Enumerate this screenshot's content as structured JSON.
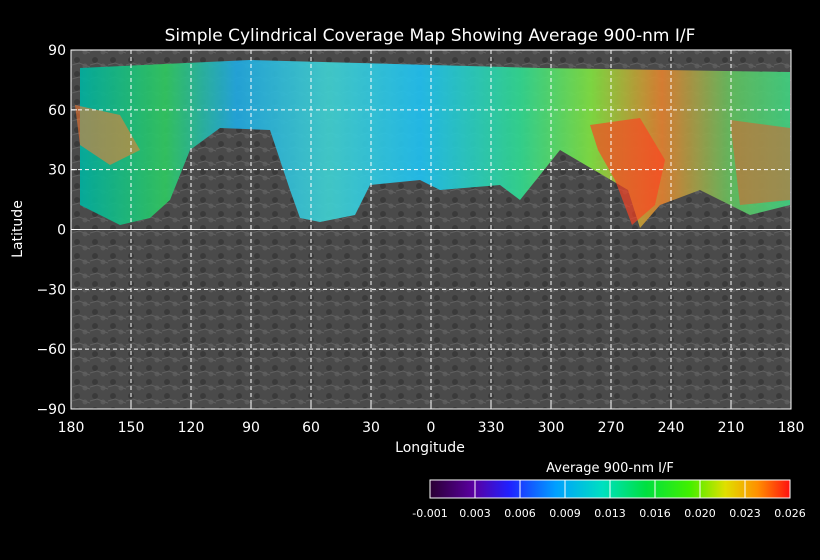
{
  "chart_data": {
    "type": "heatmap",
    "title": "Simple Cylindrical Coverage Map Showing Average 900-nm I/F",
    "xlabel": "Longitude",
    "ylabel": "Latitude",
    "x_ticks": [
      "180",
      "150",
      "120",
      "90",
      "60",
      "30",
      "0",
      "330",
      "300",
      "270",
      "240",
      "210",
      "180"
    ],
    "y_ticks": [
      "90",
      "60",
      "30",
      "0",
      "-30",
      "-60",
      "-90"
    ],
    "xlim": [
      180,
      -180
    ],
    "ylim": [
      -90,
      90
    ],
    "grid": true,
    "colorbar": {
      "label": "Average 900-nm I/F",
      "min": -0.001,
      "max": 0.026,
      "tick_labels": [
        "-0.001",
        "0.003",
        "0.006",
        "0.009",
        "0.013",
        "0.016",
        "0.020",
        "0.023",
        "0.026"
      ],
      "colors": [
        "#2a0033",
        "#5a00a0",
        "#2020ff",
        "#00a0ff",
        "#00e0c0",
        "#00e040",
        "#40f000",
        "#e0e000",
        "#ff9000",
        "#ff1010"
      ]
    },
    "coverage_band": {
      "lat_range": [
        0,
        85
      ],
      "lon_range": [
        180,
        -180
      ],
      "legend_position": "bottom-right"
    }
  }
}
